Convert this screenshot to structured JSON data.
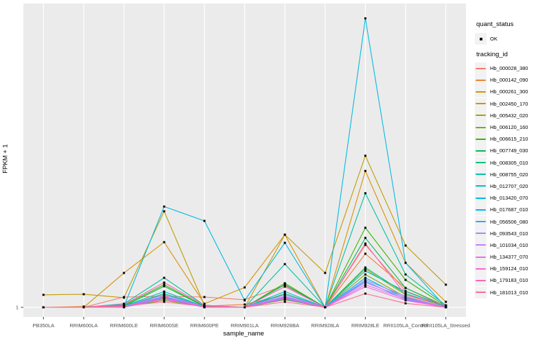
{
  "figure": {
    "y_axis_title": "FPKM + 1",
    "x_axis_title": "sample_name"
  },
  "legend": {
    "quant_status_title": "quant_status",
    "ok_label": "OK",
    "ok_marker": "black-point",
    "tracking_id_title": "tracking_id"
  },
  "colors": {
    "panel_bg": "#EBEBEB",
    "grid": "#FFFFFF",
    "tick": "#333333",
    "tick_label": "#4D4D4D",
    "point": "#000000",
    "legend_key_bg": "#F2F2F2"
  },
  "chart_data": {
    "type": "line",
    "title": "",
    "xlabel": "sample_name",
    "ylabel": "FPKM + 1",
    "y_scale": "log10",
    "y_ticks": [
      1
    ],
    "legend_position": "right",
    "grid": "vertical-major-only",
    "x_categories": [
      "PB350LA",
      "RRIM600LA",
      "RRIM600LE",
      "RRIM600SE",
      "RRIM600PE",
      "RRIM901LA",
      "RRIM928BA",
      "RRIM928LA",
      "RRIM928LE",
      "RRII105LA_Control",
      "RRII105LA_Stressed"
    ],
    "series": [
      {
        "name": "Hb_000028_380",
        "color": "#F8766D",
        "quant_status": "OK",
        "values": [
          1,
          1,
          1.28,
          1.3,
          1.28,
          1.2,
          1.69,
          1,
          4.47,
          1.48,
          1.03
        ]
      },
      {
        "name": "Hb_000142_090",
        "color": "#EA8331",
        "quant_status": "OK",
        "values": [
          1,
          1.02,
          1.02,
          1.35,
          1.03,
          1.07,
          1.35,
          1,
          3.61,
          1.59,
          1.03
        ]
      },
      {
        "name": "Hb_000261_300",
        "color": "#D89000",
        "quant_status": "OK",
        "values": [
          1,
          1,
          2.28,
          4.77,
          1.09,
          1.61,
          5.71,
          1,
          26.3,
          2.91,
          1.14
        ]
      },
      {
        "name": "Hb_002450_170",
        "color": "#C09B00",
        "quant_status": "OK",
        "values": [
          1.35,
          1.37,
          1.26,
          10.0,
          1.05,
          1,
          5.71,
          2.28,
          37.9,
          4.4,
          1.72
        ]
      },
      {
        "name": "Hb_005432_020",
        "color": "#A3A500",
        "quant_status": "OK",
        "values": [
          1,
          1,
          1.02,
          1.24,
          1.02,
          1,
          1.24,
          1,
          2.51,
          1.35,
          1.02
        ]
      },
      {
        "name": "Hb_006120_160",
        "color": "#7CAE00",
        "quant_status": "OK",
        "values": [
          1,
          1,
          1.02,
          1.18,
          1.02,
          1,
          1.2,
          1,
          2.2,
          1.28,
          1
        ]
      },
      {
        "name": "Hb_006615_210",
        "color": "#39B600",
        "quant_status": "OK",
        "values": [
          1,
          1,
          1.05,
          1.72,
          1.03,
          1,
          1.78,
          1,
          6.74,
          1.93,
          1.03
        ]
      },
      {
        "name": "Hb_007749_030",
        "color": "#00BB4E",
        "quant_status": "OK",
        "values": [
          1,
          1,
          1.03,
          1.66,
          1.02,
          1,
          1.72,
          1,
          5.28,
          1.59,
          1.02
        ]
      },
      {
        "name": "Hb_008305_010",
        "color": "#00BF7D",
        "quant_status": "OK",
        "values": [
          1,
          1,
          1.02,
          1.39,
          1.02,
          1,
          1.39,
          1,
          2.6,
          1.39,
          1.02
        ]
      },
      {
        "name": "Hb_008755_020",
        "color": "#00C1A3",
        "quant_status": "OK",
        "values": [
          1,
          1,
          1.09,
          2.03,
          1.05,
          1,
          2.82,
          1,
          15.4,
          2.2,
          1.05
        ]
      },
      {
        "name": "Hb_012707_020",
        "color": "#00BFC4",
        "quant_status": "OK",
        "values": [
          1,
          1,
          1.03,
          1.46,
          1.02,
          1,
          1.46,
          1,
          2.39,
          1.46,
          1.02
        ]
      },
      {
        "name": "Hb_013420_070",
        "color": "#00BAE0",
        "quant_status": "OK",
        "values": [
          1,
          1,
          1.02,
          11.2,
          7.94,
          1.18,
          4.69,
          1,
          1020,
          2.91,
          1
        ]
      },
      {
        "name": "Hb_017687_010",
        "color": "#00B0F6",
        "quant_status": "OK",
        "values": [
          1,
          1,
          1.02,
          1.28,
          1.02,
          1,
          1.28,
          1,
          2.03,
          1.24,
          1
        ]
      },
      {
        "name": "Hb_056506_080",
        "color": "#35A2FF",
        "quant_status": "OK",
        "values": [
          1,
          1,
          1,
          1.22,
          1,
          1,
          1.22,
          1,
          1.87,
          1.2,
          1
        ]
      },
      {
        "name": "Hb_093543_010",
        "color": "#9590FF",
        "quant_status": "OK",
        "values": [
          1,
          1,
          1.02,
          1.35,
          1.02,
          1,
          1.35,
          1,
          1.93,
          1.3,
          1
        ]
      },
      {
        "name": "Hb_101034_010",
        "color": "#C77CFF",
        "quant_status": "OK",
        "values": [
          1,
          1,
          1.02,
          1.3,
          1.02,
          1,
          1.3,
          1,
          1.81,
          1.26,
          1
        ]
      },
      {
        "name": "Hb_134377_070",
        "color": "#E76BF3",
        "quant_status": "OK",
        "values": [
          1,
          1,
          1,
          1.26,
          1,
          1,
          1.26,
          1,
          1.72,
          1.22,
          1
        ]
      },
      {
        "name": "Hb_159124_010",
        "color": "#FA62DB",
        "quant_status": "OK",
        "values": [
          1,
          1,
          1.02,
          1.22,
          1.02,
          1,
          1.24,
          1,
          1.64,
          1.18,
          1
        ]
      },
      {
        "name": "Hb_179183_010",
        "color": "#FF62BC",
        "quant_status": "OK",
        "values": [
          1,
          1,
          1.07,
          1.81,
          1.05,
          1,
          1.64,
          1,
          4.62,
          1.35,
          1.05
        ]
      },
      {
        "name": "Hb_181013_010",
        "color": "#FF6A98",
        "quant_status": "OK",
        "values": [
          1,
          1,
          1.03,
          1.14,
          1.02,
          1,
          1.14,
          1,
          1.39,
          1.1,
          1
        ]
      }
    ]
  }
}
